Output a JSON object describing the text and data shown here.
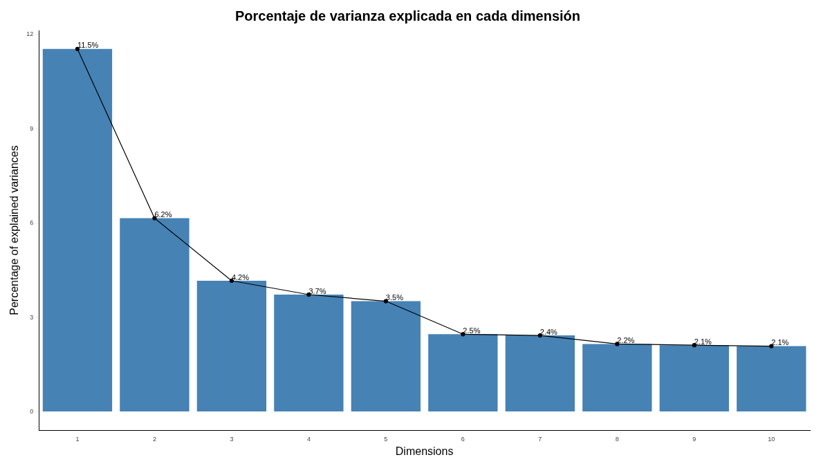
{
  "chart_data": {
    "type": "bar",
    "title": "Porcentaje de varianza explicada en cada dimensión",
    "xlabel": "Dimensions",
    "ylabel": "Percentage of explained variances",
    "categories": [
      "1",
      "2",
      "3",
      "4",
      "5",
      "6",
      "7",
      "8",
      "9",
      "10"
    ],
    "ylim": [
      -0.58,
      12.13
    ],
    "yticks": [
      0,
      3,
      6,
      9,
      12
    ],
    "grid": false,
    "legend": false,
    "series": [
      {
        "color": "#4682b4",
        "values": [
          11.54,
          6.16,
          4.17,
          3.73,
          3.52,
          2.47,
          2.43,
          2.16,
          2.12,
          2.09
        ]
      },
      {
        "type": "line",
        "color": "#000000",
        "marker": "circle",
        "values": [
          11.54,
          6.16,
          4.17,
          3.73,
          3.52,
          2.47,
          2.43,
          2.16,
          2.12,
          2.09
        ],
        "value_labels": [
          "11.5%",
          "6.2%",
          "4.2%",
          "3.7%",
          "3.5%",
          "2.5%",
          "2.4%",
          "2.2%",
          "2.1%",
          "2.1%"
        ]
      }
    ]
  }
}
